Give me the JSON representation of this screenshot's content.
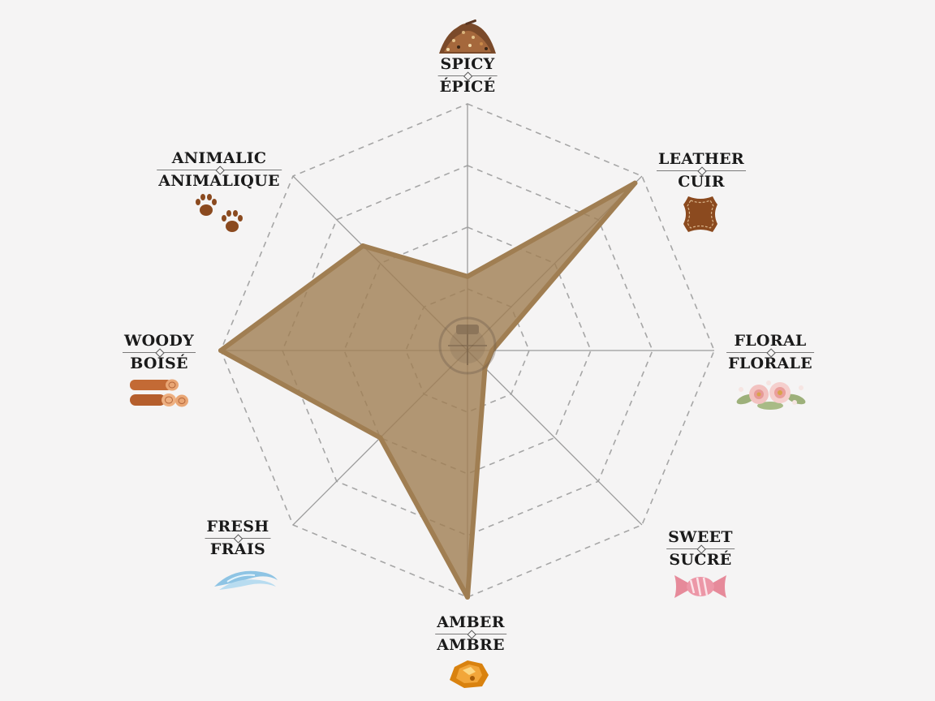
{
  "chart_data": {
    "type": "radar",
    "max_value": 5,
    "rings": 4,
    "axes": [
      {
        "en": "SPICY",
        "fr": "ÉPICÉ",
        "value": 1.5,
        "icon": "spice-pile-icon"
      },
      {
        "en": "LEATHER",
        "fr": "CUIR",
        "value": 4.8,
        "icon": "leather-hide-icon"
      },
      {
        "en": "FLORAL",
        "fr": "FLORALE",
        "value": 0.5,
        "icon": "flower-bouquet-icon"
      },
      {
        "en": "SWEET",
        "fr": "SUCRÉ",
        "value": 0.5,
        "icon": "candy-icon"
      },
      {
        "en": "AMBER",
        "fr": "AMBRE",
        "value": 5.0,
        "icon": "amber-stone-icon"
      },
      {
        "en": "FRESH",
        "fr": "FRAIS",
        "value": 2.5,
        "icon": "wind-wave-icon"
      },
      {
        "en": "WOODY",
        "fr": "BOISÉ",
        "value": 5.0,
        "icon": "wood-logs-icon"
      },
      {
        "en": "ANIMALIC",
        "fr": "ANIMALIQUE",
        "value": 3.0,
        "icon": "paw-prints-icon"
      }
    ]
  },
  "colors": {
    "background": "#f5f4f4",
    "area_fill": "#a07e52",
    "area_stroke": "#a07e52",
    "grid": "#a6a6a6",
    "axis_line": "#9a9a9a"
  }
}
